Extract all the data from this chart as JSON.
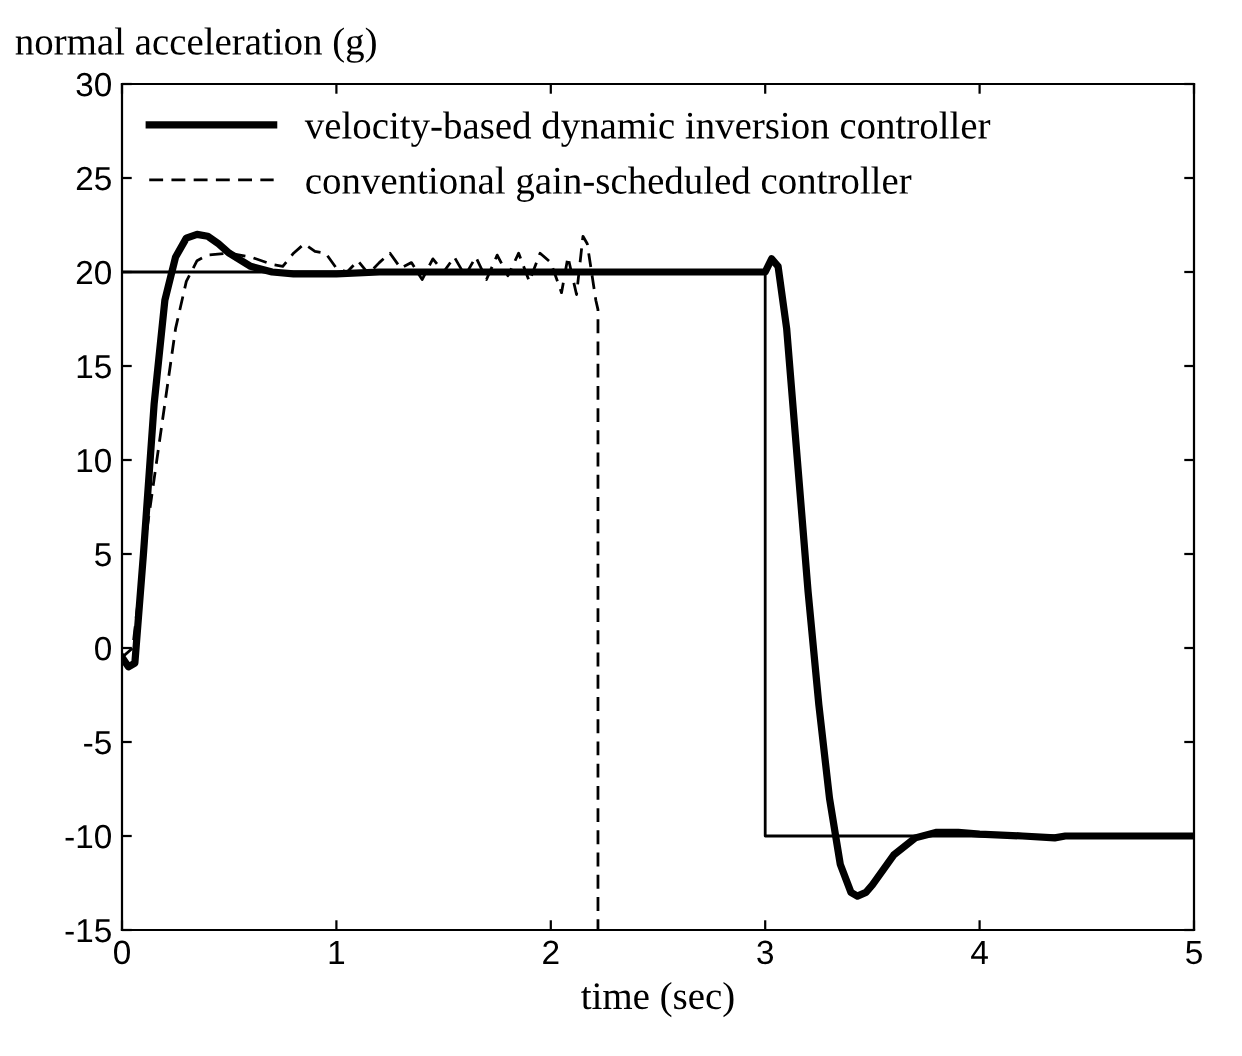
{
  "chart_data": {
    "type": "line",
    "ylabel": "normal acceleration (g)",
    "xlabel": "time (sec)",
    "xlim": [
      0,
      5
    ],
    "ylim": [
      -15,
      30
    ],
    "xticks": [
      0,
      1,
      2,
      3,
      4,
      5
    ],
    "yticks": [
      -15,
      -10,
      -5,
      0,
      5,
      10,
      15,
      20,
      25,
      30
    ],
    "grid": false,
    "legend": "top left",
    "marker": "none",
    "series": [
      {
        "type": "step",
        "color": "#000000",
        "line_style": "solid",
        "x": [
          0,
          3,
          3,
          5
        ],
        "values": [
          20,
          20,
          -10,
          -10
        ]
      },
      {
        "name": "velocity-based dynamic inversion controller",
        "color": "#000000",
        "line_style": "solid",
        "x": [
          0,
          0.03,
          0.06,
          0.1,
          0.15,
          0.2,
          0.25,
          0.3,
          0.35,
          0.4,
          0.45,
          0.5,
          0.6,
          0.7,
          0.8,
          0.9,
          1.0,
          1.2,
          1.5,
          2.0,
          2.5,
          2.95,
          3.0,
          3.03,
          3.06,
          3.1,
          3.15,
          3.2,
          3.25,
          3.3,
          3.35,
          3.4,
          3.43,
          3.47,
          3.5,
          3.55,
          3.6,
          3.7,
          3.8,
          3.9,
          4.0,
          4.2,
          4.35,
          4.4,
          4.5,
          5.0
        ],
        "values": [
          -0.5,
          -1,
          -0.8,
          5,
          13,
          18.5,
          20.8,
          21.8,
          22,
          21.9,
          21.5,
          21,
          20.3,
          20,
          19.9,
          19.9,
          19.9,
          20,
          20,
          20,
          20,
          20,
          20,
          20.7,
          20.3,
          17,
          10,
          3,
          -3,
          -8,
          -11.5,
          -13,
          -13.2,
          -13,
          -12.6,
          -11.8,
          -11,
          -10.1,
          -9.8,
          -9.8,
          -9.9,
          -10,
          -10.1,
          -10,
          -10,
          -10
        ]
      },
      {
        "name": "conventional gain-scheduled controller",
        "color": "#000000",
        "line_style": "dashed",
        "x": [
          0,
          0.05,
          0.1,
          0.15,
          0.2,
          0.25,
          0.3,
          0.35,
          0.4,
          0.5,
          0.6,
          0.7,
          0.75,
          0.8,
          0.85,
          0.9,
          0.95,
          1.0,
          1.05,
          1.1,
          1.15,
          1.2,
          1.25,
          1.3,
          1.35,
          1.4,
          1.45,
          1.5,
          1.55,
          1.6,
          1.65,
          1.7,
          1.75,
          1.8,
          1.85,
          1.9,
          1.95,
          2.0,
          2.05,
          2.08,
          2.12,
          2.15,
          2.17,
          2.19,
          2.21,
          2.22,
          2.22
        ],
        "values": [
          -0.5,
          0,
          5,
          9,
          13,
          17,
          19.5,
          20.6,
          20.9,
          21,
          20.8,
          20.4,
          20.3,
          21,
          21.5,
          21.1,
          21,
          20.2,
          20,
          20.6,
          19.9,
          20.5,
          21,
          20.2,
          20.5,
          19.6,
          20.7,
          20,
          20.8,
          19.8,
          20.8,
          19.6,
          20.9,
          19.8,
          21,
          19.5,
          21,
          20.5,
          18.9,
          20.8,
          18.8,
          21.9,
          21.5,
          20,
          18.5,
          18,
          -15
        ]
      }
    ]
  }
}
